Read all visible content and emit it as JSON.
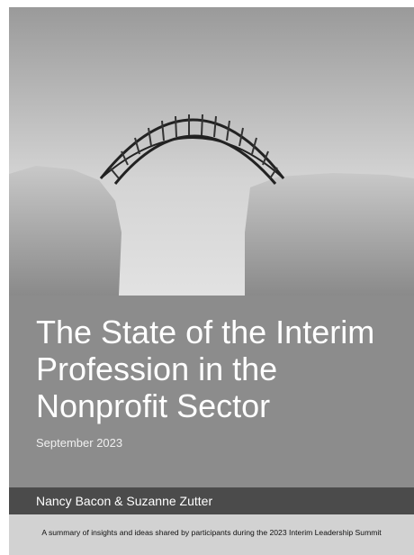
{
  "cover": {
    "title": "The State of the Interim Profession in the Nonprofit Sector",
    "date": "September 2023",
    "authors": "Nancy Bacon & Suzanne Zutter",
    "summary": "A summary of insights and ideas shared by participants during the 2023 Interim Leadership Summit"
  }
}
